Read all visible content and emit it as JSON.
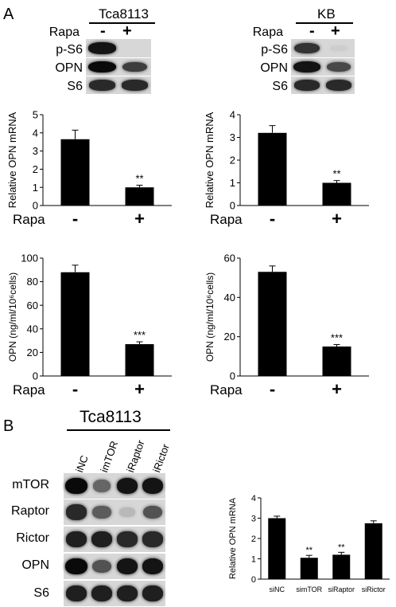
{
  "panel_a": {
    "letter": "A",
    "cells": [
      {
        "title": "Tca8113",
        "treatment_label": "Rapa",
        "signs": [
          "-",
          "+"
        ],
        "blot_rows": [
          {
            "label": "p-S6",
            "bands": [
              0.95,
              0.0
            ]
          },
          {
            "label": "OPN",
            "bands": [
              1.0,
              0.75
            ]
          },
          {
            "label": "S6",
            "bands": [
              0.85,
              0.85
            ]
          }
        ]
      },
      {
        "title": "KB",
        "treatment_label": "Rapa",
        "signs": [
          "-",
          "+"
        ],
        "blot_rows": [
          {
            "label": "p-S6",
            "bands": [
              0.8,
              0.05
            ]
          },
          {
            "label": "OPN",
            "bands": [
              0.95,
              0.7
            ]
          },
          {
            "label": "S6",
            "bands": [
              0.85,
              0.85
            ]
          }
        ]
      }
    ]
  },
  "panel_b": {
    "letter": "B",
    "title": "Tca8113",
    "lanes": [
      "siNC",
      "simTOR",
      "siRaptor",
      "siRictor"
    ],
    "blot_rows": [
      {
        "label": "mTOR",
        "bands": [
          1.0,
          0.55,
          0.95,
          0.95
        ]
      },
      {
        "label": "Raptor",
        "bands": [
          0.85,
          0.6,
          0.15,
          0.65
        ]
      },
      {
        "label": "Rictor",
        "bands": [
          0.9,
          0.9,
          0.85,
          0.85
        ]
      },
      {
        "label": "OPN",
        "bands": [
          1.0,
          0.65,
          0.95,
          0.95
        ]
      },
      {
        "label": "S6",
        "bands": [
          0.9,
          0.9,
          0.9,
          0.9
        ]
      }
    ]
  },
  "chart_data": [
    {
      "type": "bar",
      "ylabel": "Relative OPN mRNA",
      "x_label": "Rapa",
      "categories": [
        "-",
        "+"
      ],
      "values": [
        3.65,
        1.0
      ],
      "errors": [
        0.5,
        0.12
      ],
      "significance": [
        "",
        "**"
      ],
      "ylim": [
        0,
        5
      ],
      "yticks": [
        0,
        1,
        2,
        3,
        4,
        5
      ],
      "grid": false,
      "bar_color": "#000000"
    },
    {
      "type": "bar",
      "ylabel": "Relative OPN mRNA",
      "x_label": "Rapa",
      "categories": [
        "-",
        "+"
      ],
      "values": [
        3.2,
        1.0
      ],
      "errors": [
        0.32,
        0.1
      ],
      "significance": [
        "",
        "**"
      ],
      "ylim": [
        0,
        4
      ],
      "yticks": [
        0,
        1,
        2,
        3,
        4
      ],
      "grid": false,
      "bar_color": "#000000"
    },
    {
      "type": "bar",
      "ylabel": "OPN (ng/ml/10⁶cells)",
      "x_label": "Rapa",
      "categories": [
        "-",
        "+"
      ],
      "values": [
        88,
        27
      ],
      "errors": [
        6,
        2
      ],
      "significance": [
        "",
        "***"
      ],
      "ylim": [
        0,
        100
      ],
      "yticks": [
        0,
        20,
        40,
        60,
        80,
        100
      ],
      "grid": false,
      "bar_color": "#000000"
    },
    {
      "type": "bar",
      "ylabel": "OPN (ng/ml/10⁶cells)",
      "x_label": "Rapa",
      "categories": [
        "-",
        "+"
      ],
      "values": [
        53,
        15
      ],
      "errors": [
        3,
        1
      ],
      "significance": [
        "",
        "***"
      ],
      "ylim": [
        0,
        60
      ],
      "yticks": [
        0,
        20,
        40,
        60
      ],
      "grid": false,
      "bar_color": "#000000"
    },
    {
      "type": "bar",
      "ylabel": "Relative OPN mRNA",
      "x_label": "",
      "categories": [
        "siNC",
        "simTOR",
        "siRaptor",
        "siRictor"
      ],
      "values": [
        3.0,
        1.05,
        1.2,
        2.75
      ],
      "errors": [
        0.1,
        0.12,
        0.12,
        0.12
      ],
      "significance": [
        "",
        "**",
        "**",
        ""
      ],
      "ylim": [
        0,
        4
      ],
      "yticks": [
        0,
        1,
        2,
        3,
        4
      ],
      "grid": false,
      "bar_color": "#000000"
    }
  ]
}
